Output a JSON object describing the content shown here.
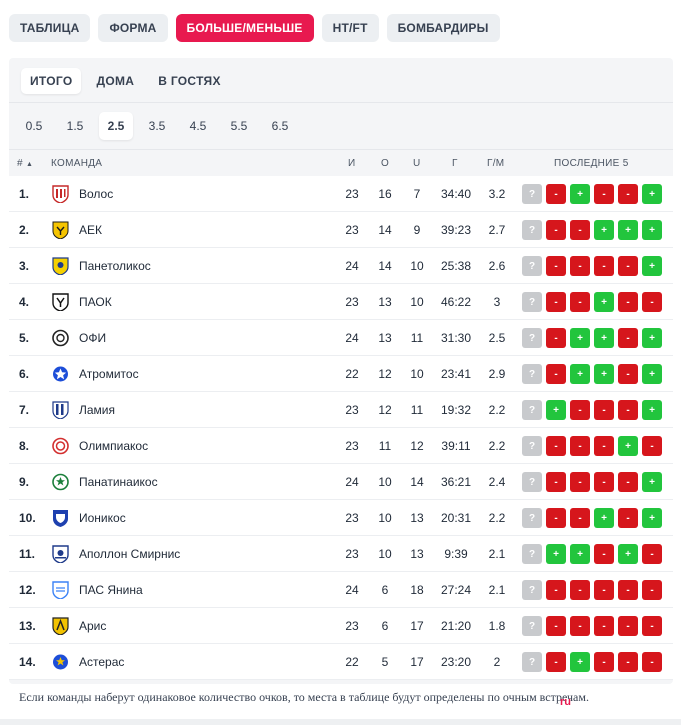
{
  "tabs": [
    "ТАБЛИЦА",
    "ФОРМА",
    "БОЛЬШЕ/МЕНЬШЕ",
    "HT/FT",
    "БОМБАРДИРЫ"
  ],
  "active_tab": 2,
  "filters": [
    "ИТОГО",
    "ДОМА",
    "В ГОСТЯХ"
  ],
  "active_filter": 0,
  "totals": [
    "0.5",
    "1.5",
    "2.5",
    "3.5",
    "4.5",
    "5.5",
    "6.5"
  ],
  "active_total": 2,
  "header": {
    "pos": "#",
    "sort_icon": "▲",
    "team": "КОМАНДА",
    "i": "И",
    "o": "O",
    "u": "U",
    "g": "Г",
    "gm": "Г/М",
    "last5": "ПОСЛЕДНИЕ 5"
  },
  "form_symbols": {
    "q": "?",
    "m": "-",
    "p": "+"
  },
  "colors": {
    "accent": "#e8194f",
    "over": "#22c53d",
    "under": "#d6161c",
    "unknown": "#c8cacd"
  },
  "rows": [
    {
      "pos": "1.",
      "team": "Волос",
      "i": "23",
      "o": "16",
      "u": "7",
      "g": "34:40",
      "gm": "3.2",
      "form": [
        "q",
        "m",
        "p",
        "m",
        "m",
        "p"
      ]
    },
    {
      "pos": "2.",
      "team": "АЕК",
      "i": "23",
      "o": "14",
      "u": "9",
      "g": "39:23",
      "gm": "2.7",
      "form": [
        "q",
        "m",
        "m",
        "p",
        "p",
        "p"
      ]
    },
    {
      "pos": "3.",
      "team": "Панетоликос",
      "i": "24",
      "o": "14",
      "u": "10",
      "g": "25:38",
      "gm": "2.6",
      "form": [
        "q",
        "m",
        "m",
        "m",
        "m",
        "p"
      ]
    },
    {
      "pos": "4.",
      "team": "ПАОК",
      "i": "23",
      "o": "13",
      "u": "10",
      "g": "46:22",
      "gm": "3",
      "form": [
        "q",
        "m",
        "m",
        "p",
        "m",
        "m"
      ]
    },
    {
      "pos": "5.",
      "team": "ОФИ",
      "i": "24",
      "o": "13",
      "u": "11",
      "g": "31:30",
      "gm": "2.5",
      "form": [
        "q",
        "m",
        "p",
        "p",
        "m",
        "p"
      ]
    },
    {
      "pos": "6.",
      "team": "Атромитос",
      "i": "22",
      "o": "12",
      "u": "10",
      "g": "23:41",
      "gm": "2.9",
      "form": [
        "q",
        "m",
        "p",
        "p",
        "m",
        "p"
      ]
    },
    {
      "pos": "7.",
      "team": "Ламия",
      "i": "23",
      "o": "12",
      "u": "11",
      "g": "19:32",
      "gm": "2.2",
      "form": [
        "q",
        "p",
        "m",
        "m",
        "m",
        "p"
      ]
    },
    {
      "pos": "8.",
      "team": "Олимпиакос",
      "i": "23",
      "o": "11",
      "u": "12",
      "g": "39:11",
      "gm": "2.2",
      "form": [
        "q",
        "m",
        "m",
        "m",
        "p",
        "m"
      ]
    },
    {
      "pos": "9.",
      "team": "Панатинаикос",
      "i": "24",
      "o": "10",
      "u": "14",
      "g": "36:21",
      "gm": "2.4",
      "form": [
        "q",
        "m",
        "m",
        "m",
        "m",
        "p"
      ]
    },
    {
      "pos": "10.",
      "team": "Ионикос",
      "i": "23",
      "o": "10",
      "u": "13",
      "g": "20:31",
      "gm": "2.2",
      "form": [
        "q",
        "m",
        "m",
        "p",
        "m",
        "p"
      ]
    },
    {
      "pos": "11.",
      "team": "Аполлон Смирнис",
      "i": "23",
      "o": "10",
      "u": "13",
      "g": "9:39",
      "gm": "2.1",
      "form": [
        "q",
        "p",
        "p",
        "m",
        "p",
        "m"
      ]
    },
    {
      "pos": "12.",
      "team": "ПАС Янина",
      "i": "24",
      "o": "6",
      "u": "18",
      "g": "27:24",
      "gm": "2.1",
      "form": [
        "q",
        "m",
        "m",
        "m",
        "m",
        "m"
      ]
    },
    {
      "pos": "13.",
      "team": "Арис",
      "i": "23",
      "o": "6",
      "u": "17",
      "g": "21:20",
      "gm": "1.8",
      "form": [
        "q",
        "m",
        "m",
        "m",
        "m",
        "m"
      ]
    },
    {
      "pos": "14.",
      "team": "Астерас",
      "i": "22",
      "o": "5",
      "u": "17",
      "g": "23:20",
      "gm": "2",
      "form": [
        "q",
        "m",
        "p",
        "m",
        "m",
        "m"
      ]
    }
  ],
  "crests": [
    {
      "icon": "volos-crest-icon",
      "primary": "#c62828",
      "secondary": "#ffffff"
    },
    {
      "icon": "aek-crest-icon",
      "primary": "#f5c400",
      "secondary": "#1a1a1a"
    },
    {
      "icon": "panetolikos-crest-icon",
      "primary": "#f5d000",
      "secondary": "#1e3a8a"
    },
    {
      "icon": "paok-crest-icon",
      "primary": "#111111",
      "secondary": "#ffffff"
    },
    {
      "icon": "ofi-crest-icon",
      "primary": "#222222",
      "secondary": "#ffffff"
    },
    {
      "icon": "atromitos-crest-icon",
      "primary": "#1d4ed8",
      "secondary": "#ffffff"
    },
    {
      "icon": "lamia-crest-icon",
      "primary": "#1e3a8a",
      "secondary": "#ffffff"
    },
    {
      "icon": "olympiacos-crest-icon",
      "primary": "#d32f2f",
      "secondary": "#ffffff"
    },
    {
      "icon": "panathinaikos-crest-icon",
      "primary": "#1b7f3b",
      "secondary": "#ffffff"
    },
    {
      "icon": "ionikos-crest-icon",
      "primary": "#1e40af",
      "secondary": "#ffffff"
    },
    {
      "icon": "apollon-crest-icon",
      "primary": "#1e3a8a",
      "secondary": "#ffffff"
    },
    {
      "icon": "pas-giannina-crest-icon",
      "primary": "#3b82f6",
      "secondary": "#ffffff"
    },
    {
      "icon": "aris-crest-icon",
      "primary": "#f2c200",
      "secondary": "#222222"
    },
    {
      "icon": "asteras-crest-icon",
      "primary": "#1d4ed8",
      "secondary": "#f5c400"
    }
  ],
  "footnote": "Если команды наберут одинаковое количество очков, то места в таблице будут определены по очным встречам.",
  "watermark": {
    "prefix": "",
    "site": "ru"
  }
}
